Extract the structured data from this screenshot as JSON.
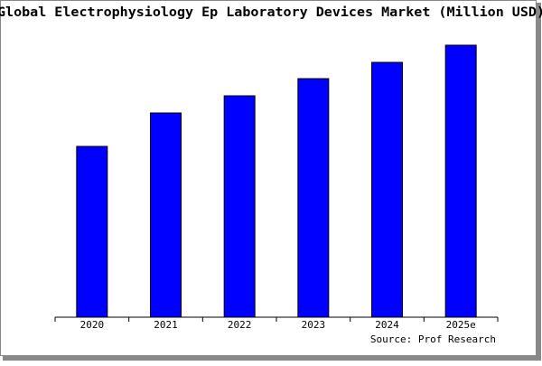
{
  "chart_data": {
    "type": "bar",
    "title": "Global Electrophysiology Ep Laboratory Devices Market (Million USD)",
    "categories": [
      "2020",
      "2021",
      "2022",
      "2023",
      "2024",
      "2025e"
    ],
    "values": [
      189,
      226,
      245,
      264,
      282,
      301
    ],
    "color": "#0000ff",
    "source": "Source: Prof Research"
  }
}
